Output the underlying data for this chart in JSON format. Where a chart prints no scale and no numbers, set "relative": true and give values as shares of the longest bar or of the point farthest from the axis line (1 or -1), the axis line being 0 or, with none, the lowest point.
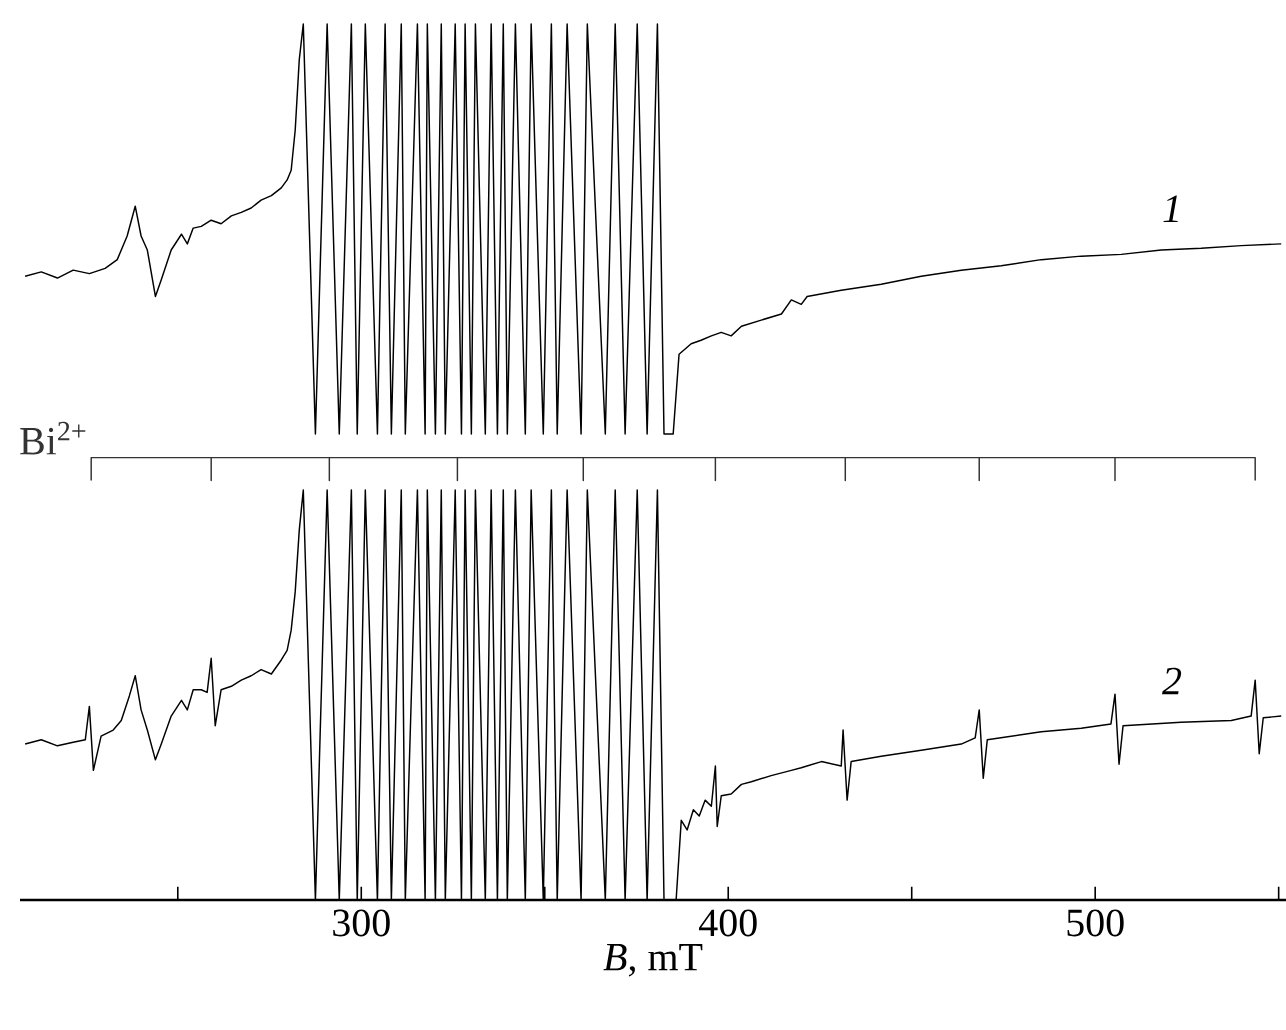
{
  "chart_data": {
    "type": "line",
    "relative": true,
    "tick_labels": "x",
    "xlabel": "*B*, mT",
    "xlim": [
      207,
      552
    ],
    "xticks": [
      {
        "value": 250,
        "label": null
      },
      300,
      {
        "value": 350,
        "label": null
      },
      400,
      {
        "value": 450,
        "label": null
      },
      500,
      {
        "value": 550,
        "label": null
      }
    ],
    "series": [
      {
        "name": "1",
        "color": "#000000",
        "x": [
          208.4,
          212.8,
          217.2,
          221.5,
          225.9,
          230.2,
          233.5,
          236.2,
          238.4,
          240.0,
          241.7,
          243.9,
          245.5,
          248.2,
          251.0,
          252.6,
          254.2,
          256.4,
          259.1,
          261.8,
          264.6,
          267.3,
          270.0,
          272.7,
          275.5,
          278.2,
          279.8,
          280.9,
          282.0,
          283.1,
          284.2,
          287.5,
          290.7,
          294.0,
          297.3,
          298.9,
          301.1,
          304.4,
          306.5,
          308.2,
          310.9,
          312.0,
          315.3,
          317.4,
          318.0,
          320.2,
          321.8,
          322.9,
          325.6,
          327.3,
          328.3,
          330.0,
          331.1,
          333.8,
          335.4,
          337.1,
          338.7,
          339.8,
          342.0,
          344.7,
          346.3,
          349.6,
          351.8,
          353.4,
          356.1,
          359.9,
          361.6,
          366.5,
          369.2,
          371.9,
          375.2,
          377.9,
          380.7,
          382.5,
          385.0,
          386.6,
          389.9,
          392.6,
          395.4,
          398.1,
          400.8,
          403.6,
          409.0,
          414.5,
          417.2,
          419.9,
          421.5,
          430.8,
          441.7,
          452.6,
          463.5,
          474.4,
          485.3,
          496.2,
          507.1,
          518.0,
          528.9,
          539.8,
          550.7
        ],
        "values": [
          0.712,
          0.717,
          0.71,
          0.719,
          0.715,
          0.721,
          0.731,
          0.758,
          0.792,
          0.758,
          0.742,
          0.689,
          0.708,
          0.742,
          0.76,
          0.749,
          0.767,
          0.769,
          0.776,
          0.772,
          0.781,
          0.785,
          0.79,
          0.799,
          0.804,
          0.813,
          0.822,
          0.833,
          0.879,
          0.959,
          1,
          0.532,
          1,
          0.532,
          1,
          0.532,
          1,
          0.532,
          1,
          0.532,
          1,
          0.532,
          1,
          0.532,
          1,
          0.532,
          1,
          0.532,
          1,
          0.532,
          1,
          0.532,
          1,
          0.532,
          1,
          0.532,
          1,
          0.532,
          1,
          0.532,
          1,
          0.532,
          1,
          0.532,
          1,
          0.532,
          1,
          0.532,
          1,
          0.532,
          1,
          0.532,
          1,
          0.532,
          0.532,
          0.623,
          0.635,
          0.639,
          0.644,
          0.648,
          0.644,
          0.655,
          0.662,
          0.669,
          0.685,
          0.68,
          0.689,
          0.696,
          0.703,
          0.712,
          0.719,
          0.724,
          0.731,
          0.735,
          0.737,
          0.742,
          0.744,
          0.747,
          0.749
        ]
      },
      {
        "name": "2",
        "color": "#000000",
        "x": [
          208.4,
          212.8,
          217.2,
          221.5,
          224.8,
          225.9,
          227.0,
          229.1,
          232.4,
          234.6,
          236.8,
          238.4,
          240.0,
          241.7,
          243.9,
          245.5,
          248.2,
          251.0,
          252.6,
          254.2,
          256.4,
          258.0,
          259.1,
          260.2,
          261.8,
          264.6,
          267.3,
          270.0,
          272.7,
          275.5,
          278.2,
          279.8,
          280.9,
          282.0,
          283.1,
          284.2,
          287.5,
          290.7,
          294.0,
          297.3,
          298.9,
          301.1,
          304.4,
          306.5,
          308.2,
          310.9,
          312.0,
          315.3,
          317.4,
          318.0,
          320.2,
          321.8,
          322.9,
          325.6,
          327.3,
          328.3,
          330.0,
          331.1,
          333.8,
          335.4,
          337.1,
          338.7,
          339.8,
          342.0,
          344.7,
          346.3,
          349.6,
          351.8,
          353.4,
          356.1,
          359.9,
          361.6,
          366.5,
          369.2,
          371.9,
          375.2,
          377.9,
          380.7,
          382.5,
          385.8,
          387.2,
          388.8,
          390.5,
          392.1,
          393.7,
          395.4,
          396.5,
          397.0,
          398.1,
          400.8,
          403.6,
          406.3,
          411.7,
          417.2,
          419.9,
          425.4,
          430.8,
          431.3,
          432.4,
          433.5,
          441.7,
          452.6,
          463.5,
          467.3,
          468.4,
          469.5,
          470.6,
          485.3,
          496.2,
          504.3,
          505.4,
          506.5,
          507.6,
          523.4,
          537.1,
          542.5,
          543.6,
          544.7,
          545.8,
          550.7
        ],
        "values": [
          0.178,
          0.183,
          0.176,
          0.18,
          0.183,
          0.221,
          0.148,
          0.187,
          0.194,
          0.205,
          0.233,
          0.256,
          0.217,
          0.194,
          0.16,
          0.178,
          0.21,
          0.228,
          0.217,
          0.24,
          0.24,
          0.237,
          0.276,
          0.199,
          0.24,
          0.244,
          0.251,
          0.256,
          0.263,
          0.258,
          0.274,
          0.285,
          0.308,
          0.352,
          0.422,
          0.468,
          0,
          0.468,
          0,
          0.468,
          0,
          0.468,
          0,
          0.468,
          0,
          0.468,
          0,
          0.468,
          0,
          0.468,
          0,
          0.468,
          0,
          0.468,
          0,
          0.468,
          0,
          0.468,
          0,
          0.468,
          0,
          0.468,
          0,
          0.468,
          0,
          0.468,
          0,
          0.468,
          0,
          0.468,
          0,
          0.468,
          0,
          0.468,
          0,
          0.468,
          0,
          0.468,
          0,
          0,
          0.091,
          0.08,
          0.103,
          0.096,
          0.114,
          0.107,
          0.153,
          0.084,
          0.119,
          0.121,
          0.132,
          0.135,
          0.142,
          0.148,
          0.151,
          0.158,
          0.153,
          0.194,
          0.114,
          0.158,
          0.164,
          0.171,
          0.178,
          0.185,
          0.217,
          0.139,
          0.183,
          0.192,
          0.196,
          0.201,
          0.235,
          0.155,
          0.199,
          0.203,
          0.205,
          0.21,
          0.251,
          0.167,
          0.208,
          0.21
        ]
      },
      {
        "name": "Bi$^{2+}$",
        "color": "#333333",
        "x": [
          226.4,
          226.4,
          259.1,
          259.1,
          259.1,
          291.3,
          291.3,
          291.3,
          326.2,
          326.2,
          326.2,
          360.5,
          360.5,
          360.5,
          396.5,
          396.5,
          396.5,
          431.9,
          431.9,
          431.9,
          468.4,
          468.4,
          468.4,
          505.4,
          505.4,
          505.4,
          543.6,
          543.6
        ],
        "values": [
          0.479,
          0.505,
          0.505,
          0.479,
          0.505,
          0.505,
          0.479,
          0.505,
          0.505,
          0.479,
          0.505,
          0.505,
          0.479,
          0.505,
          0.505,
          0.479,
          0.505,
          0.505,
          0.479,
          0.505,
          0.505,
          0.479,
          0.505,
          0.505,
          0.479,
          0.505,
          0.505,
          0.479
        ]
      }
    ]
  }
}
